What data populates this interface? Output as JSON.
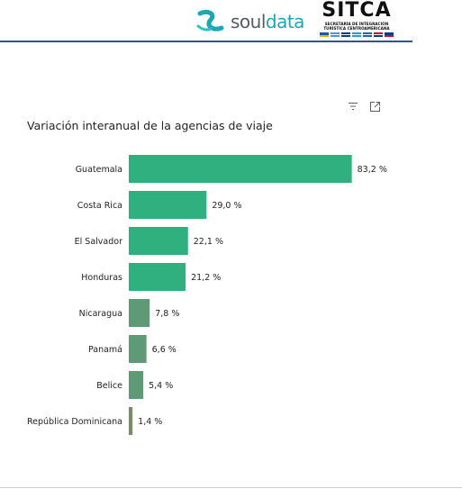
{
  "header": {
    "souldata_logo": {
      "part1": "soul",
      "part2": "data"
    },
    "sitca_logo": {
      "title": "SITCA",
      "subtitle_line1": "SECRETARÍA DE INTEGRACIÓN",
      "subtitle_line2": "TURÍSTICA CENTROAMERICANA"
    }
  },
  "visual": {
    "filter_icon": "filter-icon",
    "focus_icon": "focus-mode-icon"
  },
  "colors": {
    "bar_high": "#31b07f",
    "bar_low": "#5e9a75",
    "bar_lowest": "#7b8b6a",
    "header_line": "#2f5597"
  },
  "chart_data": {
    "type": "bar",
    "orientation": "horizontal",
    "title": "Variación interanual de la agencias de viaje",
    "categories": [
      "Guatemala",
      "Costa Rica",
      "El Salvador",
      "Honduras",
      "Nicaragua",
      "Panamá",
      "Belice",
      "República Dominicana"
    ],
    "values": [
      83.2,
      29.0,
      22.1,
      21.2,
      7.8,
      6.6,
      5.4,
      1.4
    ],
    "value_labels": [
      "83,2 %",
      "29,0 %",
      "22,1 %",
      "21,2 %",
      "7,8 %",
      "6,6 %",
      "5,4 %",
      "1,4 %"
    ],
    "xlim": [
      0,
      85
    ],
    "grid": false,
    "legend": "none"
  }
}
